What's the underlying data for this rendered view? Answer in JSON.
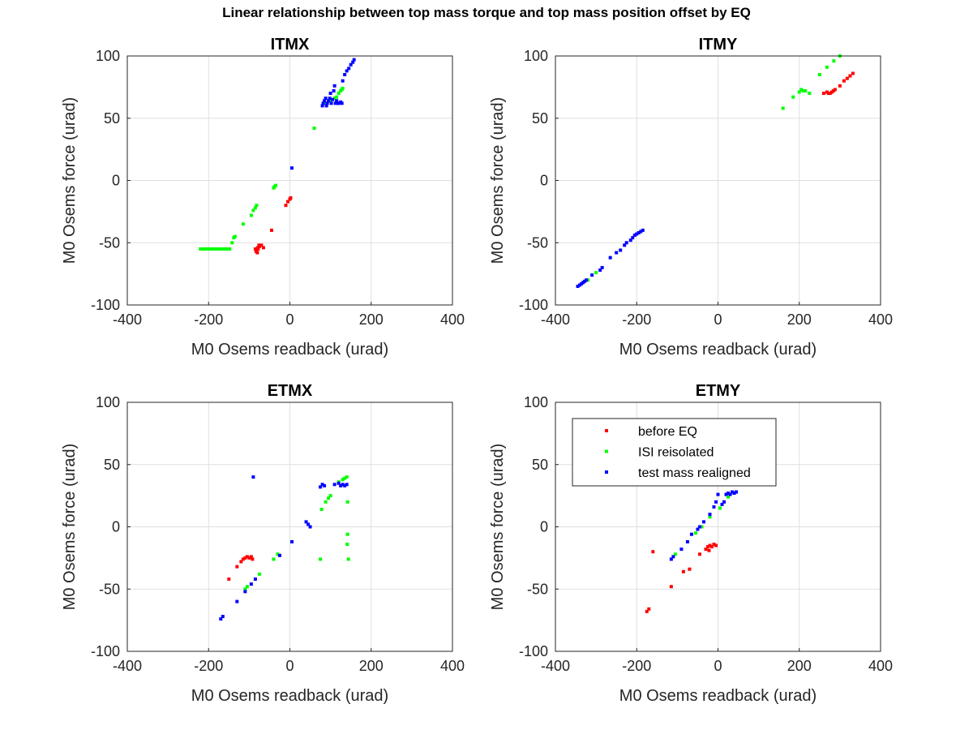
{
  "figure": {
    "title": "Linear relationship between top mass torque and top mass position offset by EQ"
  },
  "chart_data": [
    {
      "type": "scatter",
      "title": "ITMX",
      "xlabel": "M0 Osems readback (urad)",
      "ylabel": "M0 Osems force (urad)",
      "xlim": [
        -400,
        400
      ],
      "ylim": [
        -100,
        100
      ],
      "xticks": [
        -400,
        -200,
        0,
        200,
        400
      ],
      "yticks": [
        -100,
        -50,
        0,
        50,
        100
      ],
      "grid": true,
      "series": [
        {
          "name": "before EQ",
          "color": "#ff0000",
          "points": [
            [
              -85,
              -55
            ],
            [
              -83,
              -57
            ],
            [
              -82,
              -56
            ],
            [
              -80,
              -58
            ],
            [
              -79,
              -54
            ],
            [
              -78,
              -55
            ],
            [
              -76,
              -52
            ],
            [
              -75,
              -53
            ],
            [
              -70,
              -52
            ],
            [
              -65,
              -54
            ],
            [
              -45,
              -40
            ],
            [
              -10,
              -20
            ],
            [
              -5,
              -17
            ],
            [
              0,
              -15
            ],
            [
              2,
              -14
            ]
          ]
        },
        {
          "name": "ISI reisolated",
          "color": "#00ff00",
          "points": [
            [
              -220,
              -55
            ],
            [
              -214,
              -55
            ],
            [
              -208,
              -55
            ],
            [
              -202,
              -55
            ],
            [
              -196,
              -55
            ],
            [
              -190,
              -55
            ],
            [
              -184,
              -55
            ],
            [
              -178,
              -55
            ],
            [
              -172,
              -55
            ],
            [
              -166,
              -55
            ],
            [
              -160,
              -55
            ],
            [
              -154,
              -55
            ],
            [
              -148,
              -55
            ],
            [
              -142,
              -50
            ],
            [
              -138,
              -46
            ],
            [
              -135,
              -45
            ],
            [
              -115,
              -35
            ],
            [
              -95,
              -28
            ],
            [
              -90,
              -24
            ],
            [
              -85,
              -22
            ],
            [
              -82,
              -20
            ],
            [
              -40,
              -6
            ],
            [
              -38,
              -5
            ],
            [
              -35,
              -4
            ],
            [
              60,
              42
            ],
            [
              90,
              62
            ],
            [
              100,
              64
            ],
            [
              110,
              66
            ],
            [
              115,
              67
            ],
            [
              120,
              70
            ],
            [
              125,
              72
            ],
            [
              128,
              73
            ],
            [
              130,
              74
            ]
          ]
        },
        {
          "name": "test mass realigned",
          "color": "#0000ff",
          "points": [
            [
              5,
              10
            ],
            [
              80,
              60
            ],
            [
              82,
              62
            ],
            [
              85,
              64
            ],
            [
              88,
              66
            ],
            [
              90,
              60
            ],
            [
              92,
              62
            ],
            [
              95,
              64
            ],
            [
              98,
              66
            ],
            [
              100,
              70
            ],
            [
              102,
              62
            ],
            [
              105,
              65
            ],
            [
              108,
              72
            ],
            [
              110,
              76
            ],
            [
              112,
              62
            ],
            [
              115,
              64
            ],
            [
              118,
              62
            ],
            [
              120,
              62
            ],
            [
              125,
              63
            ],
            [
              128,
              62
            ],
            [
              130,
              80
            ],
            [
              135,
              85
            ],
            [
              140,
              88
            ],
            [
              145,
              90
            ],
            [
              150,
              93
            ],
            [
              155,
              95
            ],
            [
              158,
              97
            ]
          ]
        }
      ]
    },
    {
      "type": "scatter",
      "title": "ITMY",
      "xlabel": "M0 Osems readback (urad)",
      "ylabel": "M0 Osems force (urad)",
      "xlim": [
        -400,
        400
      ],
      "ylim": [
        -100,
        100
      ],
      "xticks": [
        -400,
        -200,
        0,
        200,
        400
      ],
      "yticks": [
        -100,
        -50,
        0,
        50,
        100
      ],
      "grid": true,
      "series": [
        {
          "name": "before EQ",
          "color": "#ff0000",
          "points": [
            [
              260,
              70
            ],
            [
              268,
              71
            ],
            [
              272,
              70
            ],
            [
              276,
              70
            ],
            [
              280,
              71
            ],
            [
              284,
              72
            ],
            [
              288,
              73
            ],
            [
              300,
              76
            ],
            [
              310,
              80
            ],
            [
              318,
              82
            ],
            [
              325,
              84
            ],
            [
              332,
              86
            ]
          ]
        },
        {
          "name": "ISI reisolated",
          "color": "#00ff00",
          "points": [
            [
              -320,
              -80
            ],
            [
              -300,
              -74
            ],
            [
              160,
              58
            ],
            [
              185,
              67
            ],
            [
              200,
              71
            ],
            [
              205,
              73
            ],
            [
              210,
              72
            ],
            [
              215,
              72
            ],
            [
              225,
              70
            ],
            [
              250,
              85
            ],
            [
              268,
              91
            ],
            [
              285,
              96
            ],
            [
              300,
              100
            ]
          ]
        },
        {
          "name": "test mass realigned",
          "color": "#0000ff",
          "points": [
            [
              -345,
              -85
            ],
            [
              -340,
              -84
            ],
            [
              -336,
              -83
            ],
            [
              -332,
              -82
            ],
            [
              -328,
              -81
            ],
            [
              -324,
              -80
            ],
            [
              -310,
              -76
            ],
            [
              -290,
              -72
            ],
            [
              -285,
              -70
            ],
            [
              -265,
              -62
            ],
            [
              -250,
              -58
            ],
            [
              -240,
              -56
            ],
            [
              -230,
              -52
            ],
            [
              -225,
              -50
            ],
            [
              -215,
              -48
            ],
            [
              -210,
              -46
            ],
            [
              -205,
              -44
            ],
            [
              -200,
              -43
            ],
            [
              -195,
              -42
            ],
            [
              -190,
              -41
            ],
            [
              -185,
              -40
            ]
          ]
        }
      ]
    },
    {
      "type": "scatter",
      "title": "ETMX",
      "xlabel": "M0 Osems readback (urad)",
      "ylabel": "M0 Osems force (urad)",
      "xlim": [
        -400,
        400
      ],
      "ylim": [
        -100,
        100
      ],
      "xticks": [
        -400,
        -200,
        0,
        200,
        400
      ],
      "yticks": [
        -100,
        -50,
        0,
        50,
        100
      ],
      "grid": true,
      "series": [
        {
          "name": "before EQ",
          "color": "#ff0000",
          "points": [
            [
              -150,
              -42
            ],
            [
              -130,
              -32
            ],
            [
              -120,
              -28
            ],
            [
              -115,
              -26
            ],
            [
              -110,
              -25
            ],
            [
              -105,
              -24
            ],
            [
              -100,
              -25
            ],
            [
              -95,
              -24
            ],
            [
              -92,
              -26
            ]
          ]
        },
        {
          "name": "ISI reisolated",
          "color": "#00ff00",
          "points": [
            [
              -110,
              -50
            ],
            [
              -105,
              -48
            ],
            [
              -75,
              -38
            ],
            [
              -40,
              -26
            ],
            [
              -30,
              -22
            ],
            [
              75,
              -26
            ],
            [
              78,
              14
            ],
            [
              88,
              20
            ],
            [
              95,
              23
            ],
            [
              100,
              25
            ],
            [
              120,
              36
            ],
            [
              130,
              38
            ],
            [
              135,
              39
            ],
            [
              140,
              40
            ],
            [
              142,
              20
            ],
            [
              144,
              -26
            ],
            [
              142,
              -6
            ],
            [
              141,
              -14
            ]
          ]
        },
        {
          "name": "test mass realigned",
          "color": "#0000ff",
          "points": [
            [
              -170,
              -74
            ],
            [
              -165,
              -72
            ],
            [
              -130,
              -60
            ],
            [
              -110,
              -52
            ],
            [
              -95,
              -46
            ],
            [
              -85,
              -42
            ],
            [
              -90,
              40
            ],
            [
              -25,
              -23
            ],
            [
              5,
              -12
            ],
            [
              40,
              4
            ],
            [
              45,
              2
            ],
            [
              50,
              0
            ],
            [
              75,
              32
            ],
            [
              80,
              34
            ],
            [
              85,
              33
            ],
            [
              110,
              34
            ],
            [
              120,
              35
            ],
            [
              125,
              33
            ],
            [
              130,
              34
            ],
            [
              135,
              33
            ],
            [
              140,
              34
            ]
          ]
        }
      ]
    },
    {
      "type": "scatter",
      "title": "ETMY",
      "xlabel": "M0 Osems readback (urad)",
      "ylabel": "M0 Osems force (urad)",
      "xlim": [
        -400,
        400
      ],
      "ylim": [
        -100,
        100
      ],
      "xticks": [
        -400,
        -200,
        0,
        200,
        400
      ],
      "yticks": [
        -100,
        -50,
        0,
        50,
        100
      ],
      "grid": true,
      "legend": {
        "position": "top-left",
        "entries": [
          "before EQ",
          "ISI reisolated",
          "test mass realigned"
        ]
      },
      "series": [
        {
          "name": "before EQ",
          "color": "#ff0000",
          "points": [
            [
              -175,
              -68
            ],
            [
              -170,
              -66
            ],
            [
              -160,
              -20
            ],
            [
              -115,
              -48
            ],
            [
              -85,
              -36
            ],
            [
              -70,
              -34
            ],
            [
              -45,
              -22
            ],
            [
              -30,
              -18
            ],
            [
              -25,
              -16
            ],
            [
              -20,
              -15
            ],
            [
              -15,
              -16
            ],
            [
              -10,
              -14
            ],
            [
              -5,
              -15
            ],
            [
              -22,
              -19
            ]
          ]
        },
        {
          "name": "ISI reisolated",
          "color": "#00ff00",
          "points": [
            [
              -105,
              -22
            ],
            [
              -55,
              -5
            ],
            [
              -40,
              0
            ],
            [
              -20,
              8
            ],
            [
              5,
              15
            ],
            [
              25,
              24
            ]
          ]
        },
        {
          "name": "test mass realigned",
          "color": "#0000ff",
          "points": [
            [
              -115,
              -26
            ],
            [
              -110,
              -24
            ],
            [
              -90,
              -18
            ],
            [
              -75,
              -12
            ],
            [
              -65,
              -6
            ],
            [
              -50,
              -2
            ],
            [
              -45,
              0
            ],
            [
              -35,
              4
            ],
            [
              -20,
              10
            ],
            [
              -10,
              16
            ],
            [
              -5,
              20
            ],
            [
              0,
              26
            ],
            [
              10,
              18
            ],
            [
              15,
              20
            ],
            [
              20,
              26
            ],
            [
              25,
              27
            ],
            [
              30,
              26
            ],
            [
              35,
              28
            ],
            [
              40,
              27
            ],
            [
              45,
              28
            ]
          ]
        }
      ]
    }
  ]
}
